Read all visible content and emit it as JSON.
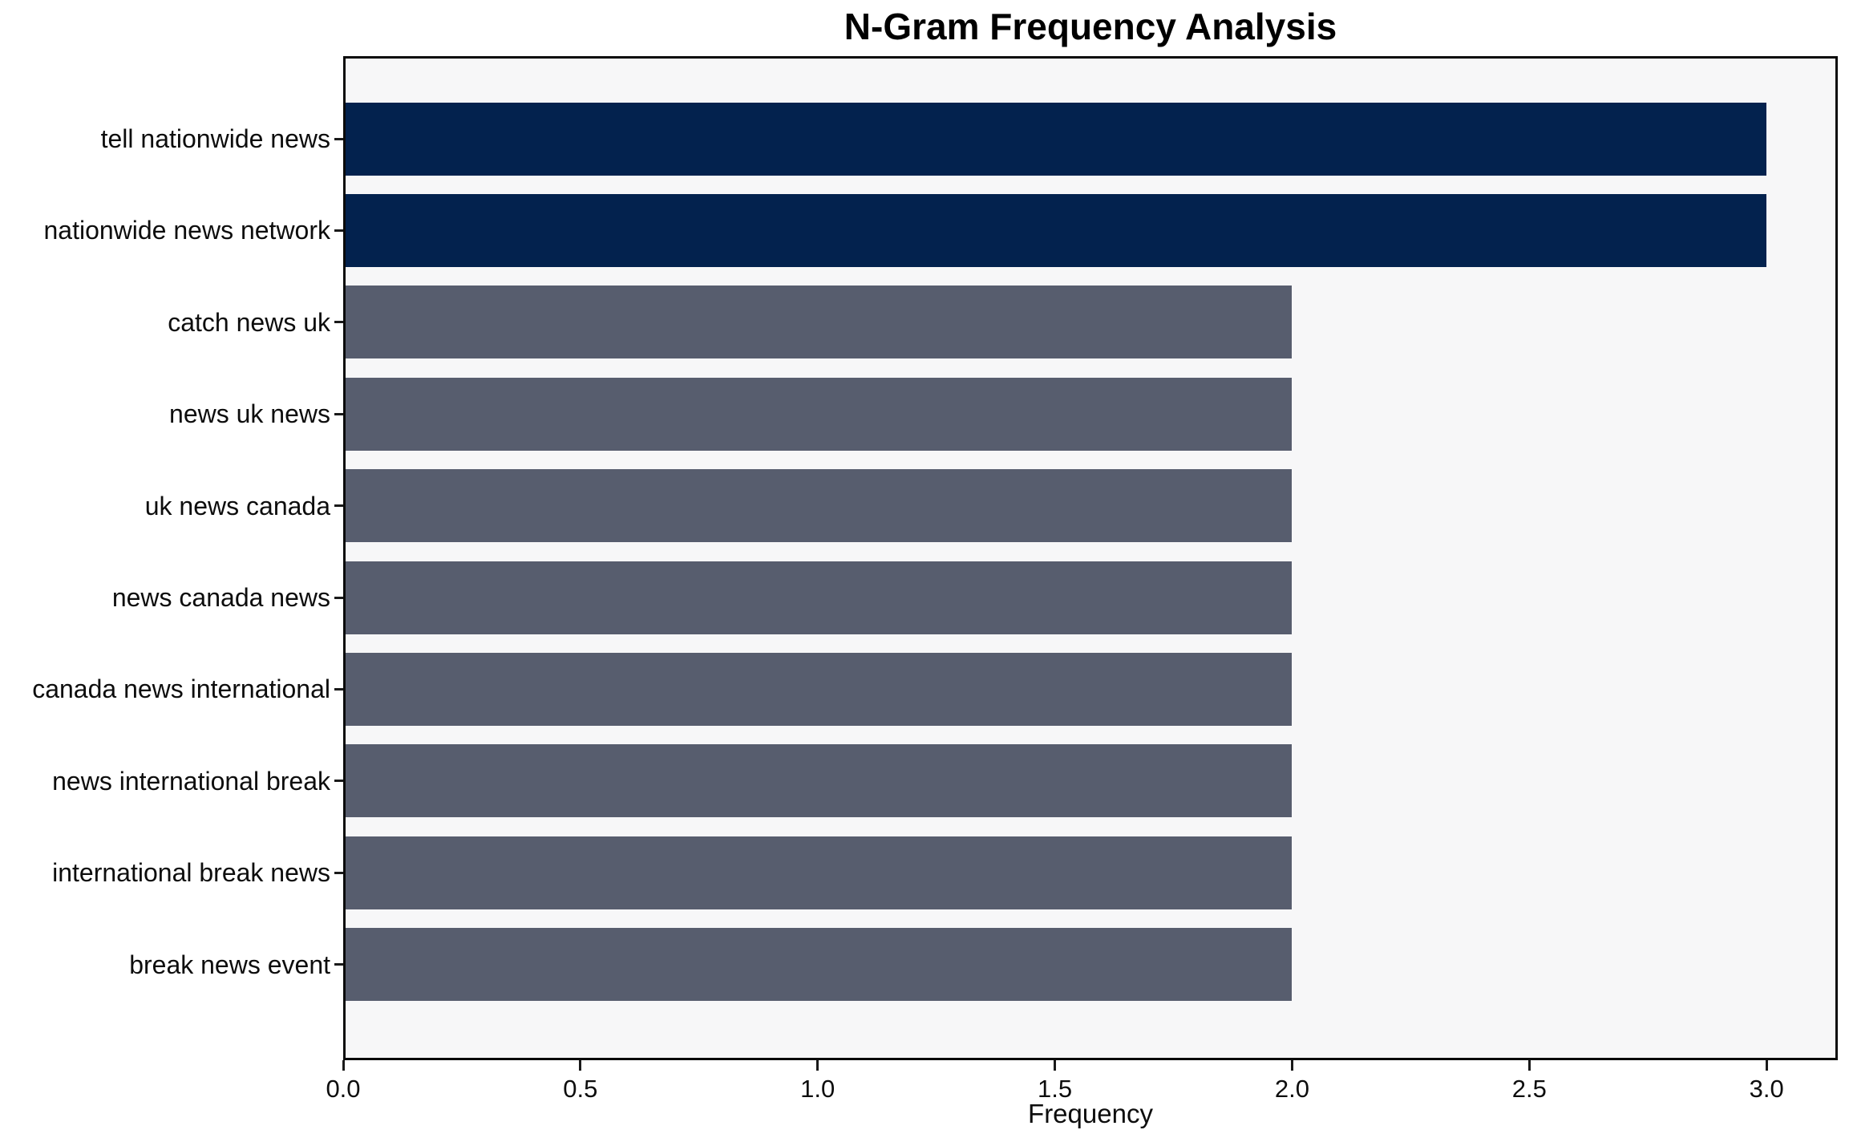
{
  "chart_data": {
    "type": "bar",
    "orientation": "horizontal",
    "title": "N-Gram Frequency Analysis",
    "xlabel": "Frequency",
    "ylabel": "",
    "categories": [
      "tell nationwide news",
      "nationwide news network",
      "catch news uk",
      "news uk news",
      "uk news canada",
      "news canada news",
      "canada news international",
      "news international break",
      "international break news",
      "break news event"
    ],
    "values": [
      3,
      3,
      2,
      2,
      2,
      2,
      2,
      2,
      2,
      2
    ],
    "bar_colors": [
      "#03224e",
      "#03224e",
      "#575d6e",
      "#575d6e",
      "#575d6e",
      "#575d6e",
      "#575d6e",
      "#575d6e",
      "#575d6e",
      "#575d6e"
    ],
    "xlim": [
      0,
      3.15
    ],
    "x_ticks": [
      0.0,
      0.5,
      1.0,
      1.5,
      2.0,
      2.5,
      3.0
    ],
    "x_tick_labels": [
      "0.0",
      "0.5",
      "1.0",
      "1.5",
      "2.0",
      "2.5",
      "3.0"
    ],
    "grid": false,
    "legend": false,
    "colors": {
      "highlight_bar": "#03224e",
      "regular_bar": "#575d6e",
      "plot_background": "#f7f7f8",
      "figure_background": "#ffffff",
      "frame": "#0a0a0a",
      "text": "#0d0d0d"
    }
  }
}
